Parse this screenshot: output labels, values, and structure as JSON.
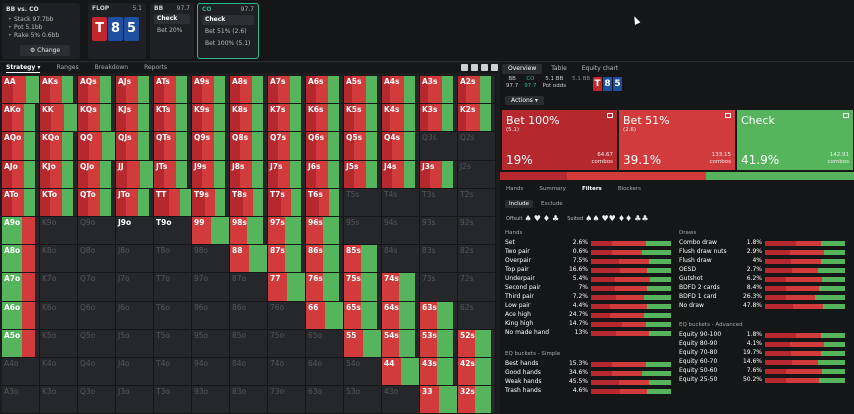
{
  "colors": {
    "bet100": "#b5282e",
    "bet51": "#d23b3c",
    "check": "#56b45c",
    "empty": "#26272a",
    "accent": "#2fb58a"
  },
  "context": {
    "title": "BB vs. CO",
    "stack": "Stack 97.7bb",
    "pot": "Pot 5.1bb",
    "rake": "Rake 5% 0.6bb",
    "change_label": "Change"
  },
  "flop": {
    "label": "FLOP",
    "pot": "5.1",
    "cards": [
      {
        "r": "T",
        "c": "#c2272d"
      },
      {
        "r": "8",
        "c": "#1f4fa0"
      },
      {
        "r": "5",
        "c": "#1f4fa0"
      }
    ]
  },
  "actions_bar": [
    {
      "player": "BB",
      "stack": "97.7",
      "options": [
        "Check",
        "Bet 20%"
      ],
      "selected": 0,
      "active": false
    },
    {
      "player": "CO",
      "stack": "97.7",
      "options": [
        "Check",
        "Bet 51%",
        "Bet 100%"
      ],
      "pcts": [
        "",
        "(2.6)",
        "(5.1)"
      ],
      "selected": 0,
      "active": true
    }
  ],
  "tabs": [
    "Strategy",
    "Ranges",
    "Breakdown",
    "Reports"
  ],
  "hands": [
    [
      "AA",
      "AKs",
      "AQs",
      "AJs",
      "ATs",
      "A9s",
      "A8s",
      "A7s",
      "A6s",
      "A5s",
      "A4s",
      "A3s",
      "A2s"
    ],
    [
      "AKo",
      "KK",
      "KQs",
      "KJs",
      "KTs",
      "K9s",
      "K8s",
      "K7s",
      "K6s",
      "K5s",
      "K4s",
      "K3s",
      "K2s"
    ],
    [
      "AQo",
      "KQo",
      "QQ",
      "QJs",
      "QTs",
      "Q9s",
      "Q8s",
      "Q7s",
      "Q6s",
      "Q5s",
      "Q4s",
      "Q3s",
      "Q2s"
    ],
    [
      "AJo",
      "KJo",
      "QJo",
      "JJ",
      "JTs",
      "J9s",
      "J8s",
      "J7s",
      "J6s",
      "J5s",
      "J4s",
      "J3s",
      "J2s"
    ],
    [
      "ATo",
      "KTo",
      "QTo",
      "JTo",
      "TT",
      "T9s",
      "T8s",
      "T7s",
      "T6s",
      "T5s",
      "T4s",
      "T3s",
      "T2s"
    ],
    [
      "A9o",
      "K9o",
      "Q9o",
      "J9o",
      "T9o",
      "99",
      "98s",
      "97s",
      "96s",
      "95s",
      "94s",
      "93s",
      "92s"
    ],
    [
      "A8o",
      "K8o",
      "Q8o",
      "J8o",
      "T8o",
      "98o",
      "88",
      "87s",
      "86s",
      "85s",
      "84s",
      "83s",
      "82s"
    ],
    [
      "A7o",
      "K7o",
      "Q7o",
      "J7o",
      "T7o",
      "97o",
      "87o",
      "77",
      "76s",
      "75s",
      "74s",
      "73s",
      "72s"
    ],
    [
      "A6o",
      "K6o",
      "Q6o",
      "J6o",
      "T6o",
      "96o",
      "86o",
      "76o",
      "66",
      "65s",
      "64s",
      "63s",
      "62s"
    ],
    [
      "A5o",
      "K5o",
      "Q5o",
      "J5o",
      "T5o",
      "95o",
      "85o",
      "75o",
      "65o",
      "55",
      "54s",
      "53s",
      "52s"
    ],
    [
      "A4o",
      "K4o",
      "Q4o",
      "J4o",
      "T4o",
      "94o",
      "84o",
      "74o",
      "64o",
      "54o",
      "44",
      "43s",
      "42s"
    ],
    [
      "A3o",
      "K3o",
      "Q3o",
      "J3o",
      "T3o",
      "93o",
      "83o",
      "73o",
      "63o",
      "53o",
      "43o",
      "33",
      "32s"
    ]
  ],
  "overview_tabs": [
    "Overview",
    "Table",
    "Equity chart"
  ],
  "line_info": {
    "bb": "BB",
    "bb_stack": "97.7",
    "co": "CO",
    "co_stack": "97.7",
    "pot": "5.1 BB",
    "pot_odds": "5.1 BB",
    "pot_label": "Pot odds"
  },
  "actions_label": "Actions",
  "action_boxes": [
    {
      "name": "Bet 100%",
      "size": "(5.1)",
      "pct": "19%",
      "combos": "64.67",
      "color": "#b5282e"
    },
    {
      "name": "Bet 51%",
      "size": "(2.6)",
      "pct": "39.1%",
      "combos": "133.15",
      "color": "#d23b3c"
    },
    {
      "name": "Check",
      "size": "",
      "pct": "41.9%",
      "combos": "142.91",
      "color": "#56b45c"
    }
  ],
  "combos_label": "combos",
  "sub_tabs": [
    "Hands",
    "Summary",
    "Filters",
    "Blockers"
  ],
  "include_tabs": [
    "Include",
    "Exclude"
  ],
  "suits_offsuit": "Offsuit",
  "suits_suited": "Suited",
  "hands_title": "Hands",
  "hands_list": [
    {
      "k": "Set",
      "v": "2.6%"
    },
    {
      "k": "Two pair",
      "v": "0.6%"
    },
    {
      "k": "Overpair",
      "v": "7.5%"
    },
    {
      "k": "Top pair",
      "v": "16.6%"
    },
    {
      "k": "Underpair",
      "v": "5.4%"
    },
    {
      "k": "Second pair",
      "v": "7%"
    },
    {
      "k": "Third pair",
      "v": "7.2%"
    },
    {
      "k": "Low pair",
      "v": "4.4%"
    },
    {
      "k": "Ace high",
      "v": "24.7%"
    },
    {
      "k": "King high",
      "v": "14.7%"
    },
    {
      "k": "No made hand",
      "v": "13%"
    }
  ],
  "eq_simple_title": "EQ buckets - Simple",
  "eq_simple": [
    {
      "k": "Best hands",
      "v": "15.3%"
    },
    {
      "k": "Good hands",
      "v": "34.6%"
    },
    {
      "k": "Weak hands",
      "v": "45.5%"
    },
    {
      "k": "Trash hands",
      "v": "4.6%"
    }
  ],
  "draws_title": "Draws",
  "draws": [
    {
      "k": "Combo draw",
      "v": "1.8%"
    },
    {
      "k": "Flush draw nuts",
      "v": "2.9%"
    },
    {
      "k": "Flush draw",
      "v": "4%"
    },
    {
      "k": "OESD",
      "v": "2.7%"
    },
    {
      "k": "Gutshot",
      "v": "6.2%"
    },
    {
      "k": "BDFD 2 cards",
      "v": "8.4%"
    },
    {
      "k": "BDFD 1 card",
      "v": "26.3%"
    },
    {
      "k": "No draw",
      "v": "47.8%"
    }
  ],
  "eq_adv_title": "EQ buckets - Advanced",
  "eq_adv": [
    {
      "k": "Equity 90-100",
      "v": "1.8%"
    },
    {
      "k": "Equity 80-90",
      "v": "4.1%"
    },
    {
      "k": "Equity 70-80",
      "v": "19.7%"
    },
    {
      "k": "Equity 60-70",
      "v": "14.6%"
    },
    {
      "k": "Equity 50-60",
      "v": "7.6%"
    },
    {
      "k": "Equity 25-50",
      "v": "50.2%"
    }
  ]
}
